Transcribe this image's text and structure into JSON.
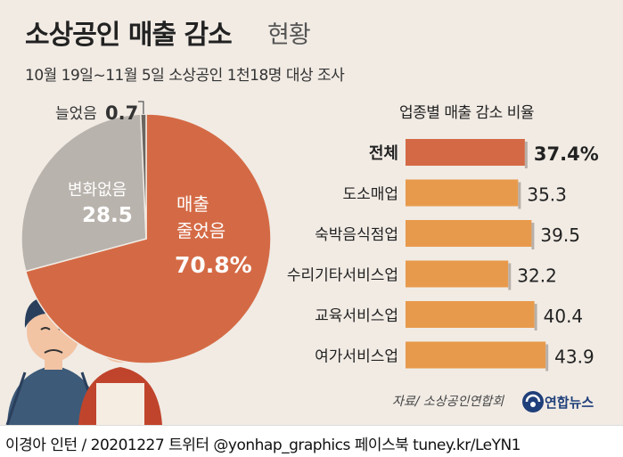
{
  "title": {
    "main": "소상공인 매출 감소",
    "sub": "현황",
    "subtitle": "10월 19일~11월 5일 소상공인 1천18명 대상 조사"
  },
  "chart_data": [
    {
      "type": "pie",
      "slices": [
        {
          "label_line1": "매출",
          "label_line2": "줄었음",
          "value": 70.8,
          "value_text": "70.8%",
          "color": "#d46a45"
        },
        {
          "label_line1": "변화없음",
          "label_line2": "",
          "value": 28.5,
          "value_text": "28.5",
          "color": "#b9b3ad"
        },
        {
          "label_line1": "늘었음",
          "label_line2": "",
          "value": 0.7,
          "value_text": "0.7",
          "color": "#6b6560"
        }
      ]
    },
    {
      "type": "bar",
      "title": "업종별 매출 감소 비율",
      "categories": [
        "전체",
        "도소매업",
        "숙박음식점업",
        "수리기타서비스업",
        "교육서비스업",
        "여가서비스업"
      ],
      "values": [
        37.4,
        35.3,
        39.5,
        32.2,
        40.4,
        43.9
      ],
      "value_labels": [
        "37.4%",
        "35.3",
        "39.5",
        "32.2",
        "40.4",
        "43.9"
      ],
      "highlight_index": 0,
      "colors": {
        "highlight": "#d46a45",
        "normal": "#e89a4c"
      }
    }
  ],
  "source": "자료/ 소상공인연합회",
  "logo": "연합뉴스",
  "footer": "이경아 인턴 / 20201227  트위터 @yonhap_graphics  페이스북 tuney.kr/LeYN1"
}
